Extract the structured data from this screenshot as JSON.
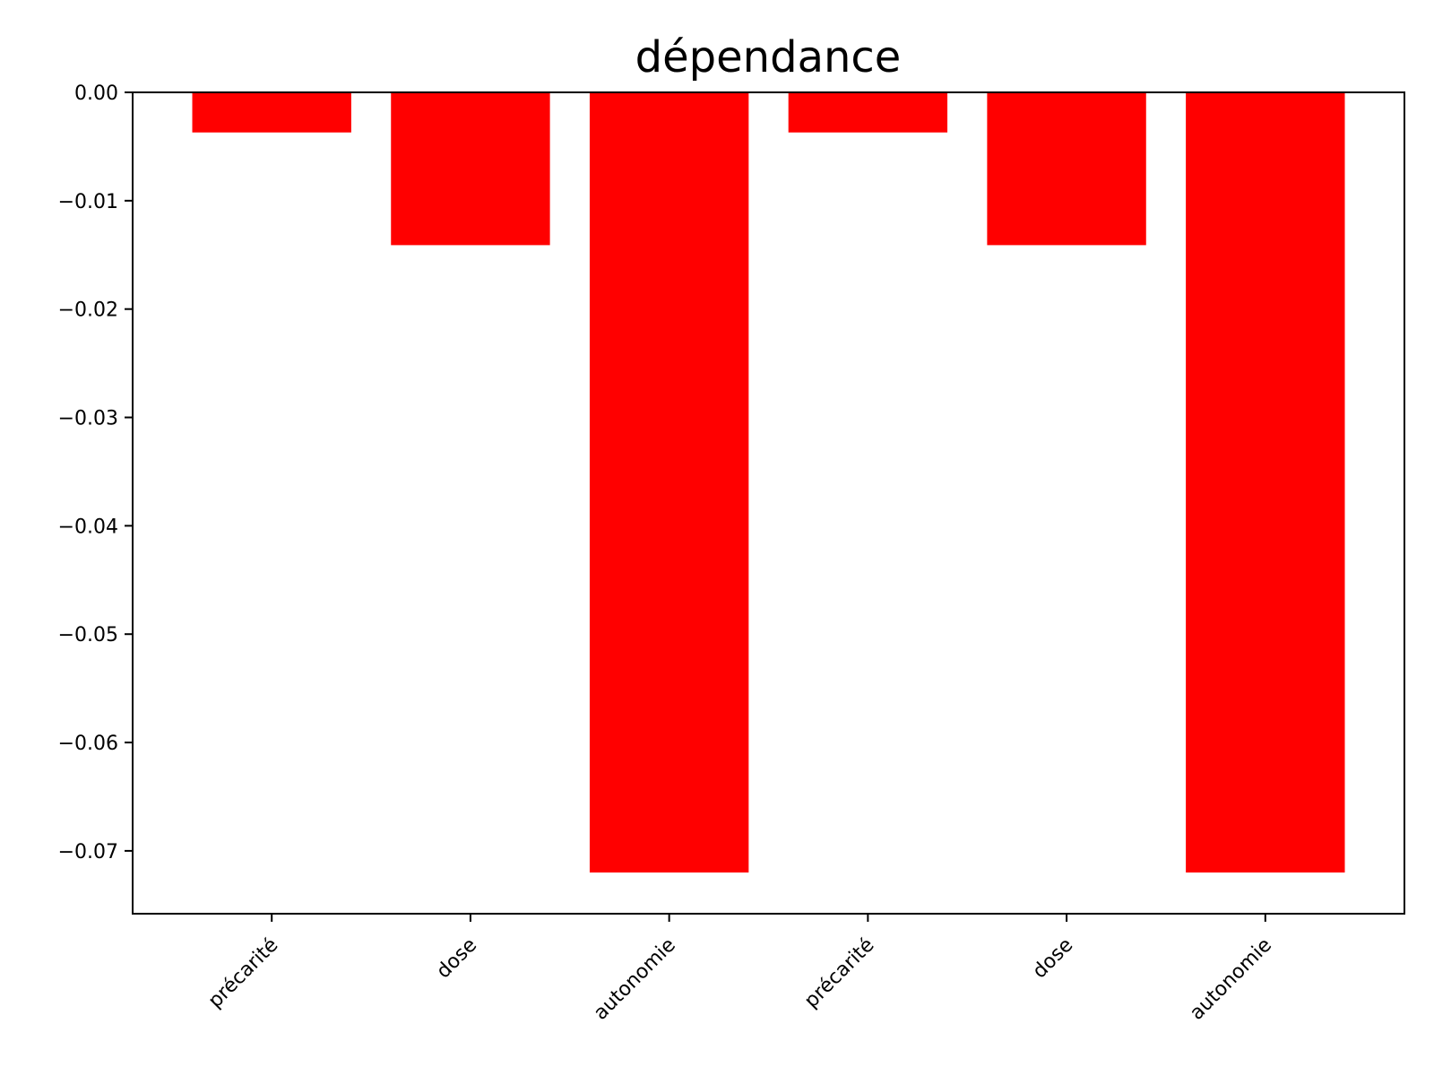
{
  "chart_data": {
    "type": "bar",
    "title": "dépendance",
    "xlabel": "",
    "ylabel": "",
    "categories": [
      "précarité",
      "dose",
      "autonomie",
      "précarité",
      "dose",
      "autonomie"
    ],
    "values": [
      -0.0037,
      -0.0141,
      -0.072,
      -0.0037,
      -0.0141,
      -0.072
    ],
    "ylim": [
      -0.0758,
      0.0
    ],
    "yticks": [
      0.0,
      -0.01,
      -0.02,
      -0.03,
      -0.04,
      -0.05,
      -0.06,
      -0.07
    ],
    "ytick_labels": [
      "0.00",
      "−0.01",
      "−0.02",
      "−0.03",
      "−0.04",
      "−0.05",
      "−0.06",
      "−0.07"
    ],
    "bar_color": "#ff0000",
    "grid": false,
    "legend": false
  }
}
